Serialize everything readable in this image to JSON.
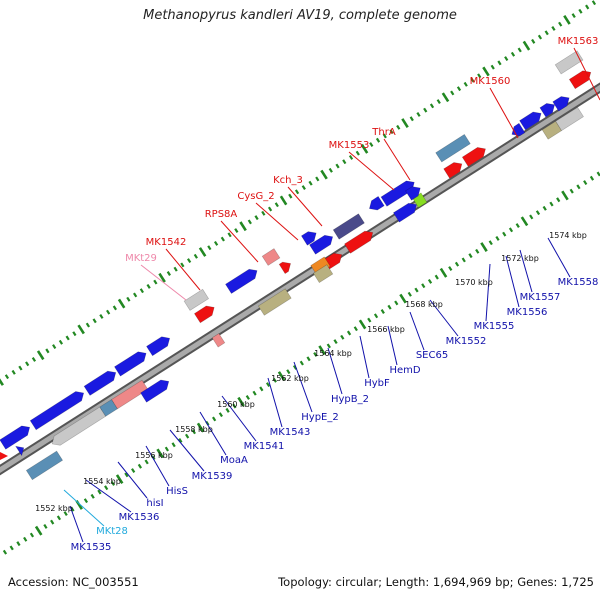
{
  "title": "Methanopyrus kandleri AV19, complete genome",
  "footer": {
    "accession": "Accession: NC_003551",
    "topology": "Topology: circular; Length: 1,694,969 bp; Genes: 1,725"
  },
  "colors": {
    "background": "#ffffff",
    "backbone": "#888888",
    "tick": "#228822",
    "gene_blue": "#1a1ae0",
    "gene_red": "#ee1111",
    "gene_grey": "#c8c8c8",
    "gene_steel": "#5a8fb5",
    "gene_salmon": "#ee8888",
    "gene_olive": "#b8b080",
    "gene_navy": "#4a4a8a",
    "gene_orange": "#ee8822",
    "gene_lime": "#88dd22",
    "label_top": "#dd1111",
    "label_bottom": "#1111aa",
    "label_trna_top": "#ee88aa",
    "label_trna_bottom": "#22aadd"
  },
  "scale_labels": [
    "1552 kbp",
    "1554 kbp",
    "1556 kbp",
    "1558 kbp",
    "1560 kbp",
    "1562 kbp",
    "1564 kbp",
    "1566 kbp",
    "1568 kbp",
    "1570 kbp",
    "1572 kbp",
    "1574 kbp"
  ],
  "top_labels": [
    {
      "text": "MK1563",
      "color": "label_top"
    },
    {
      "text": "MK1560",
      "color": "label_top"
    },
    {
      "text": "ThrA",
      "color": "label_top"
    },
    {
      "text": "MK1553",
      "color": "label_top"
    },
    {
      "text": "Kch_3",
      "color": "label_top"
    },
    {
      "text": "CysG_2",
      "color": "label_top"
    },
    {
      "text": "RPS8A",
      "color": "label_top"
    },
    {
      "text": "MK1542",
      "color": "label_top"
    },
    {
      "text": "MKt29",
      "color": "label_trna_top"
    }
  ],
  "bottom_labels": [
    {
      "text": "MK1558",
      "color": "label_bottom"
    },
    {
      "text": "MK1557",
      "color": "label_bottom"
    },
    {
      "text": "MK1556",
      "color": "label_bottom"
    },
    {
      "text": "MK1555",
      "color": "label_bottom"
    },
    {
      "text": "MK1552",
      "color": "label_bottom"
    },
    {
      "text": "SEC65",
      "color": "label_bottom"
    },
    {
      "text": "HemD",
      "color": "label_bottom"
    },
    {
      "text": "HybF",
      "color": "label_bottom"
    },
    {
      "text": "HypB_2",
      "color": "label_bottom"
    },
    {
      "text": "HypE_2",
      "color": "label_bottom"
    },
    {
      "text": "MK1543",
      "color": "label_bottom"
    },
    {
      "text": "MK1541",
      "color": "label_bottom"
    },
    {
      "text": "MoaA",
      "color": "label_bottom"
    },
    {
      "text": "MK1539",
      "color": "label_bottom"
    },
    {
      "text": "HisS",
      "color": "label_bottom"
    },
    {
      "text": "hisI",
      "color": "label_bottom"
    },
    {
      "text": "MK1536",
      "color": "label_bottom"
    },
    {
      "text": "MKt28",
      "color": "label_trna_bottom"
    },
    {
      "text": "MK1535",
      "color": "label_bottom"
    }
  ]
}
